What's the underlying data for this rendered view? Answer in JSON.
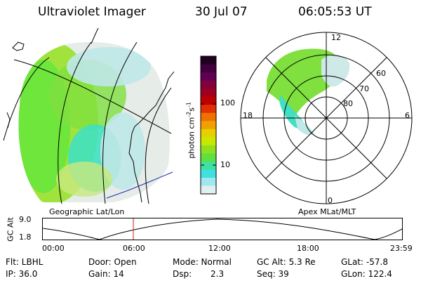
{
  "header": {
    "title": "Ultraviolet Imager",
    "date": "30 Jul 07",
    "time": "06:05:53 UT"
  },
  "geo_panel": {
    "label": "Geographic Lat/Lon",
    "emission_colors": [
      "#6ee63c",
      "#9fe33c",
      "#40e0c0",
      "#bfe8e8",
      "#e6ece8"
    ]
  },
  "apex_panel": {
    "label": "Apex  MLat/MLT",
    "mlt_labels": {
      "top": "12",
      "left": "18",
      "right": "6",
      "bottom": "0"
    },
    "lat_labels": [
      "60",
      "70",
      "80"
    ]
  },
  "colorbar": {
    "unit_label": "photon cm",
    "unit_sup1": "-2",
    "unit_s": "s",
    "unit_sup2": "-1",
    "ticks": [
      "100",
      "10"
    ],
    "colors": [
      "#200020",
      "#400040",
      "#600050",
      "#800040",
      "#a00020",
      "#c00000",
      "#e03000",
      "#f07000",
      "#f0a000",
      "#e8d000",
      "#c8e800",
      "#90e020",
      "#60e040",
      "#40e0a0",
      "#40e0e0",
      "#a0e8f0",
      "#e0f0f0"
    ]
  },
  "altitude_plot": {
    "ylabel": "GC Alt",
    "yticks": [
      "9.0",
      "1.8"
    ],
    "xticks": [
      "00:00",
      "06:00",
      "12:00",
      "18:00",
      "23:59"
    ],
    "marker_color": "#c02020"
  },
  "info": {
    "flt": "Flt: LBHL",
    "door": "Door: Open",
    "mode": "Mode: Normal",
    "gcalt": "GC Alt: 5.3 Re",
    "glat": "GLat: -57.8",
    "ip": "IP: 36.0",
    "gain": "Gain: 14",
    "dsp_label": "Dsp:",
    "dsp_value": "2.3",
    "seq": "Seq: 39",
    "glon": "GLon: 122.4"
  }
}
